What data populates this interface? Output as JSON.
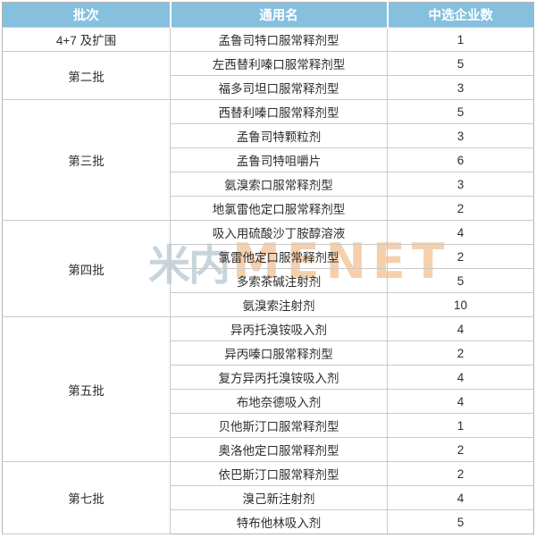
{
  "chart_data": {
    "type": "table",
    "title": "",
    "columns": [
      "批次",
      "通用名",
      "中选企业数"
    ],
    "groups": [
      {
        "batch": "4+7 及扩围",
        "rows": [
          {
            "name": "孟鲁司特口服常释剂型",
            "count": "1"
          }
        ]
      },
      {
        "batch": "第二批",
        "rows": [
          {
            "name": "左西替利嗪口服常释剂型",
            "count": "5"
          },
          {
            "name": "福多司坦口服常释剂型",
            "count": "3"
          }
        ]
      },
      {
        "batch": "第三批",
        "rows": [
          {
            "name": "西替利嗪口服常释剂型",
            "count": "5"
          },
          {
            "name": "孟鲁司特颗粒剂",
            "count": "3"
          },
          {
            "name": "孟鲁司特咀嚼片",
            "count": "6"
          },
          {
            "name": "氨溴索口服常释剂型",
            "count": "3"
          },
          {
            "name": "地氯雷他定口服常释剂型",
            "count": "2"
          }
        ]
      },
      {
        "batch": "第四批",
        "rows": [
          {
            "name": "吸入用硫酸沙丁胺醇溶液",
            "count": "4"
          },
          {
            "name": "氯雷他定口服常释剂型",
            "count": "2"
          },
          {
            "name": "多索茶碱注射剂",
            "count": "5"
          },
          {
            "name": "氨溴索注射剂",
            "count": "10"
          }
        ]
      },
      {
        "batch": "第五批",
        "rows": [
          {
            "name": "异丙托溴铵吸入剂",
            "count": "4"
          },
          {
            "name": "异丙嗪口服常释剂型",
            "count": "2"
          },
          {
            "name": "复方异丙托溴铵吸入剂",
            "count": "4"
          },
          {
            "name": "布地奈德吸入剂",
            "count": "4"
          },
          {
            "name": "贝他斯汀口服常释剂型",
            "count": "1"
          },
          {
            "name": "奥洛他定口服常释剂型",
            "count": "2"
          }
        ]
      },
      {
        "batch": "第七批",
        "rows": [
          {
            "name": "依巴斯汀口服常释剂型",
            "count": "2"
          },
          {
            "name": "溴己新注射剂",
            "count": "4"
          },
          {
            "name": "特布他林吸入剂",
            "count": "5"
          }
        ]
      }
    ]
  },
  "watermark": {
    "cn": "米内",
    "en": "MENET"
  },
  "colors": {
    "header_bg": "#85c0de",
    "header_text": "#ffffff",
    "inner_border": "#c9c9c9",
    "outer_border": "#b3b3b3",
    "body_text": "#2e2e2e",
    "watermark_cn": "#c6d2db",
    "watermark_en": "#f6cba4"
  }
}
